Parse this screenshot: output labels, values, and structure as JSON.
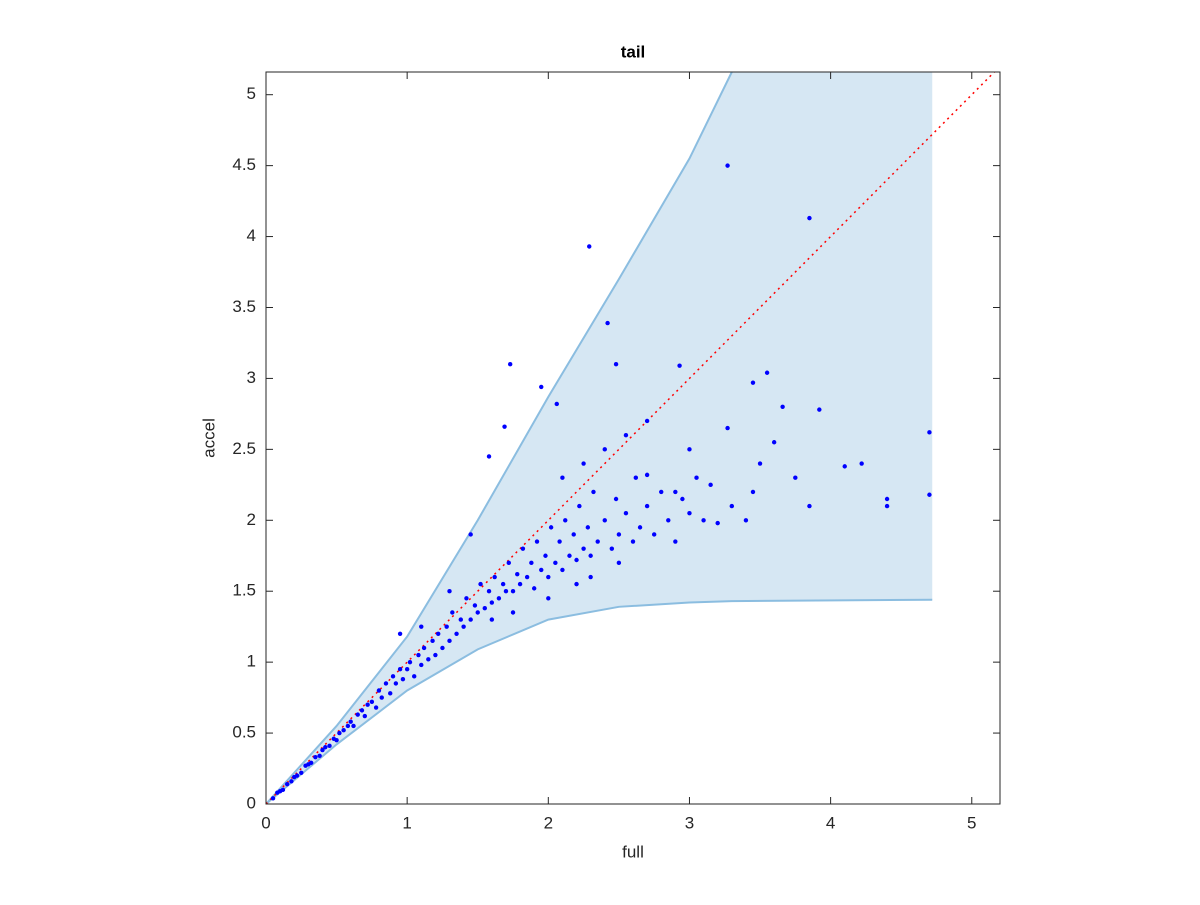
{
  "chart_data": {
    "type": "scatter",
    "title": "tail",
    "x_label": "full",
    "y_label": "accel",
    "xlim": [
      0,
      5.2
    ],
    "ylim": [
      0,
      5.16
    ],
    "xticks": [
      0,
      1,
      2,
      3,
      4,
      5
    ],
    "yticks": [
      0,
      0.5,
      1,
      1.5,
      2,
      2.5,
      3,
      3.5,
      4,
      4.5,
      5
    ],
    "color": "#0000ff",
    "x": [
      0.05,
      0.08,
      0.1,
      0.12,
      0.15,
      0.18,
      0.2,
      0.22,
      0.25,
      0.28,
      0.3,
      0.32,
      0.35,
      0.38,
      0.4,
      0.42,
      0.45,
      0.48,
      0.5,
      0.52,
      0.55,
      0.58,
      0.6,
      0.62,
      0.65,
      0.68,
      0.7,
      0.72,
      0.75,
      0.78,
      0.8,
      0.82,
      0.85,
      0.88,
      0.9,
      0.92,
      0.95,
      0.97,
      1.0,
      1.02,
      1.05,
      1.08,
      1.1,
      1.12,
      1.15,
      1.18,
      1.2,
      1.22,
      1.25,
      1.28,
      1.3,
      1.32,
      1.35,
      1.38,
      1.4,
      1.42,
      1.45,
      1.48,
      1.5,
      1.52,
      1.55,
      1.58,
      1.6,
      1.62,
      1.65,
      1.68,
      1.7,
      1.72,
      1.75,
      1.78,
      1.8,
      1.82,
      1.85,
      1.88,
      1.9,
      1.92,
      1.95,
      1.98,
      2.0,
      2.02,
      2.05,
      2.08,
      2.1,
      2.12,
      2.15,
      2.18,
      2.2,
      2.22,
      2.25,
      2.28,
      2.3,
      2.32,
      2.35,
      2.4,
      2.45,
      2.48,
      2.5,
      2.55,
      2.6,
      2.62,
      2.65,
      2.7,
      2.75,
      2.8,
      2.85,
      2.9,
      2.95,
      3.0,
      3.05,
      3.1,
      3.15,
      3.3,
      3.4,
      3.45,
      3.75,
      2.4,
      2.55,
      2.7,
      2.25,
      2.1,
      1.3,
      1.45,
      1.1,
      0.95,
      1.6,
      1.75,
      2.0,
      2.2,
      2.5,
      2.3,
      3.27,
      3.85,
      2.29,
      2.42,
      1.73,
      1.95,
      2.48,
      2.93,
      1.69,
      1.58,
      2.06,
      4.7,
      4.7,
      4.4,
      4.4,
      4.1,
      4.22,
      3.92,
      3.66,
      3.55,
      3.45,
      3.27,
      3.85,
      3.5,
      3.6,
      3.2,
      3.0,
      2.9,
      2.7
    ],
    "values": [
      0.04,
      0.08,
      0.09,
      0.1,
      0.14,
      0.16,
      0.19,
      0.2,
      0.22,
      0.27,
      0.28,
      0.29,
      0.33,
      0.34,
      0.38,
      0.4,
      0.41,
      0.46,
      0.45,
      0.5,
      0.52,
      0.55,
      0.58,
      0.55,
      0.63,
      0.66,
      0.62,
      0.7,
      0.72,
      0.68,
      0.8,
      0.75,
      0.85,
      0.78,
      0.9,
      0.85,
      0.95,
      0.88,
      0.95,
      1.0,
      0.9,
      1.05,
      0.98,
      1.1,
      1.02,
      1.15,
      1.05,
      1.2,
      1.1,
      1.25,
      1.15,
      1.35,
      1.2,
      1.3,
      1.25,
      1.45,
      1.3,
      1.4,
      1.35,
      1.55,
      1.38,
      1.5,
      1.42,
      1.6,
      1.45,
      1.55,
      1.5,
      1.7,
      1.5,
      1.62,
      1.55,
      1.8,
      1.6,
      1.7,
      1.52,
      1.85,
      1.65,
      1.75,
      1.6,
      1.95,
      1.7,
      1.85,
      1.65,
      2.0,
      1.75,
      1.9,
      1.72,
      2.1,
      1.8,
      1.95,
      1.75,
      2.2,
      1.85,
      2.0,
      1.8,
      2.15,
      1.9,
      2.05,
      1.85,
      2.3,
      1.95,
      2.1,
      1.9,
      2.2,
      2.0,
      1.85,
      2.15,
      2.05,
      2.3,
      2.0,
      2.25,
      2.1,
      2.0,
      2.2,
      2.3,
      2.5,
      2.6,
      2.7,
      2.4,
      2.3,
      1.5,
      1.9,
      1.25,
      1.2,
      1.3,
      1.35,
      1.45,
      1.55,
      1.7,
      1.6,
      4.5,
      4.13,
      3.93,
      3.39,
      3.1,
      2.94,
      3.1,
      3.09,
      2.66,
      2.45,
      2.82,
      2.62,
      2.18,
      2.15,
      2.1,
      2.38,
      2.4,
      2.78,
      2.8,
      3.04,
      2.97,
      2.65,
      2.1,
      2.4,
      2.55,
      1.98,
      2.5,
      2.2,
      2.32
    ],
    "band": {
      "color": "#d6e7f3",
      "edge_color": "#8bbde0",
      "x": [
        0,
        0.5,
        1,
        1.5,
        2,
        2.5,
        3,
        3.3,
        4.72
      ],
      "upper": [
        0,
        0.55,
        1.18,
        2.0,
        2.87,
        3.7,
        4.55,
        5.16,
        5.16
      ],
      "lower": [
        0,
        0.42,
        0.8,
        1.09,
        1.3,
        1.39,
        1.42,
        1.43,
        1.44
      ]
    },
    "reference_line": {
      "color": "#ff0000",
      "x": [
        0,
        5.2
      ],
      "y": [
        0,
        5.2
      ]
    }
  }
}
